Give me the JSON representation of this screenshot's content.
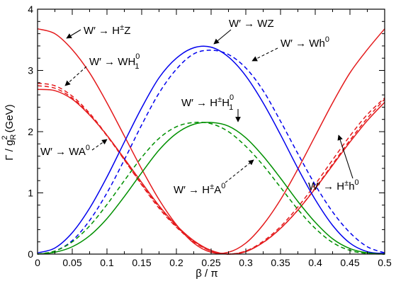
{
  "chart_data": {
    "type": "line",
    "xlabel": "β / π",
    "ylabel": "Γ / g_R² (GeV)",
    "ylabel_parts": {
      "main": "Γ / g",
      "sub": "R",
      "sup": "2",
      "unit": " (GeV)"
    },
    "xlim": [
      0,
      0.5
    ],
    "ylim": [
      0,
      4
    ],
    "x_ticks": [
      "0",
      "0.05",
      "0.1",
      "0.15",
      "0.2",
      "0.25",
      "0.3",
      "0.35",
      "0.4",
      "0.45",
      "0.5"
    ],
    "y_ticks": [
      "0",
      "1",
      "2",
      "3",
      "4"
    ],
    "grid": false,
    "x": [
      0,
      0.025,
      0.05,
      0.075,
      0.1,
      0.125,
      0.15,
      0.175,
      0.2,
      0.225,
      0.25,
      0.275,
      0.3,
      0.325,
      0.35,
      0.375,
      0.4,
      0.425,
      0.45,
      0.475,
      0.5
    ],
    "series": [
      {
        "id": "hpmz",
        "color": "#e41a1c",
        "dash": "solid",
        "values": [
          3.68,
          3.6,
          3.34,
          2.96,
          2.47,
          1.93,
          1.39,
          0.89,
          0.48,
          0.18,
          0.03,
          0.03,
          0.18,
          0.48,
          0.89,
          1.39,
          1.93,
          2.47,
          2.96,
          3.34,
          3.68
        ]
      },
      {
        "id": "wh1",
        "color": "#e41a1c",
        "dash": "dashed",
        "values": [
          2.79,
          2.75,
          2.58,
          2.3,
          1.94,
          1.54,
          1.13,
          0.75,
          0.44,
          0.2,
          0.05,
          0.0,
          0.05,
          0.19,
          0.42,
          0.72,
          1.08,
          1.47,
          1.86,
          2.22,
          2.53
        ]
      },
      {
        "id": "wa0",
        "color": "#e41a1c",
        "dash": "dashed",
        "values": [
          2.75,
          2.71,
          2.55,
          2.28,
          1.93,
          1.54,
          1.14,
          0.77,
          0.45,
          0.21,
          0.05,
          0.0,
          0.05,
          0.21,
          0.45,
          0.77,
          1.14,
          1.54,
          1.93,
          2.28,
          2.55
        ]
      },
      {
        "id": "hpmh0",
        "color": "#e41a1c",
        "dash": "solid",
        "values": [
          2.69,
          2.67,
          2.53,
          2.27,
          1.94,
          1.56,
          1.17,
          0.79,
          0.47,
          0.22,
          0.06,
          0.0,
          0.04,
          0.19,
          0.42,
          0.72,
          1.07,
          1.45,
          1.83,
          2.18,
          2.48
        ]
      },
      {
        "id": "wz",
        "color": "#0000ee",
        "dash": "solid",
        "values": [
          0.02,
          0.1,
          0.35,
          0.75,
          1.26,
          1.83,
          2.39,
          2.88,
          3.2,
          3.37,
          3.38,
          3.22,
          2.91,
          2.47,
          1.95,
          1.4,
          0.89,
          0.47,
          0.18,
          0.04,
          0.01
        ]
      },
      {
        "id": "wh0",
        "color": "#0000ee",
        "dash": "dashed",
        "values": [
          0.0,
          0.05,
          0.22,
          0.55,
          1.0,
          1.54,
          2.11,
          2.63,
          3.02,
          3.27,
          3.33,
          3.26,
          3.04,
          2.67,
          2.17,
          1.64,
          1.13,
          0.69,
          0.35,
          0.12,
          0.02
        ]
      },
      {
        "id": "hpmh1",
        "color": "#009000",
        "dash": "solid",
        "values": [
          0.0,
          0.03,
          0.12,
          0.3,
          0.58,
          0.94,
          1.33,
          1.7,
          1.97,
          2.12,
          2.15,
          2.09,
          1.9,
          1.6,
          1.24,
          0.86,
          0.52,
          0.25,
          0.09,
          0.02,
          0.0
        ]
      },
      {
        "id": "hpma0",
        "color": "#009000",
        "dash": "dashed",
        "values": [
          0.0,
          0.05,
          0.2,
          0.46,
          0.81,
          1.2,
          1.58,
          1.89,
          2.08,
          2.15,
          2.13,
          2.0,
          1.76,
          1.45,
          1.09,
          0.73,
          0.42,
          0.19,
          0.06,
          0.01,
          0.0
        ]
      }
    ],
    "annotations": [
      {
        "id": "hpmz",
        "parts": [
          "W′ → H",
          "±",
          "Z"
        ]
      },
      {
        "id": "wh1",
        "parts": [
          "W′ → WH",
          "0",
          "1"
        ]
      },
      {
        "id": "wz",
        "parts": [
          "W′ → WZ"
        ]
      },
      {
        "id": "wh0",
        "parts": [
          "W′ → Wh",
          "0"
        ]
      },
      {
        "id": "hpmh1",
        "parts": [
          "W′ → H",
          "±",
          "H",
          "0",
          "1"
        ]
      },
      {
        "id": "wa0",
        "parts": [
          "W′ → WA",
          "0"
        ]
      },
      {
        "id": "hpma0",
        "parts": [
          "W′ → H",
          "±",
          "A",
          "0"
        ]
      },
      {
        "id": "hpmh0",
        "parts": [
          "W′ → H",
          "±",
          "h",
          "0"
        ]
      }
    ]
  }
}
